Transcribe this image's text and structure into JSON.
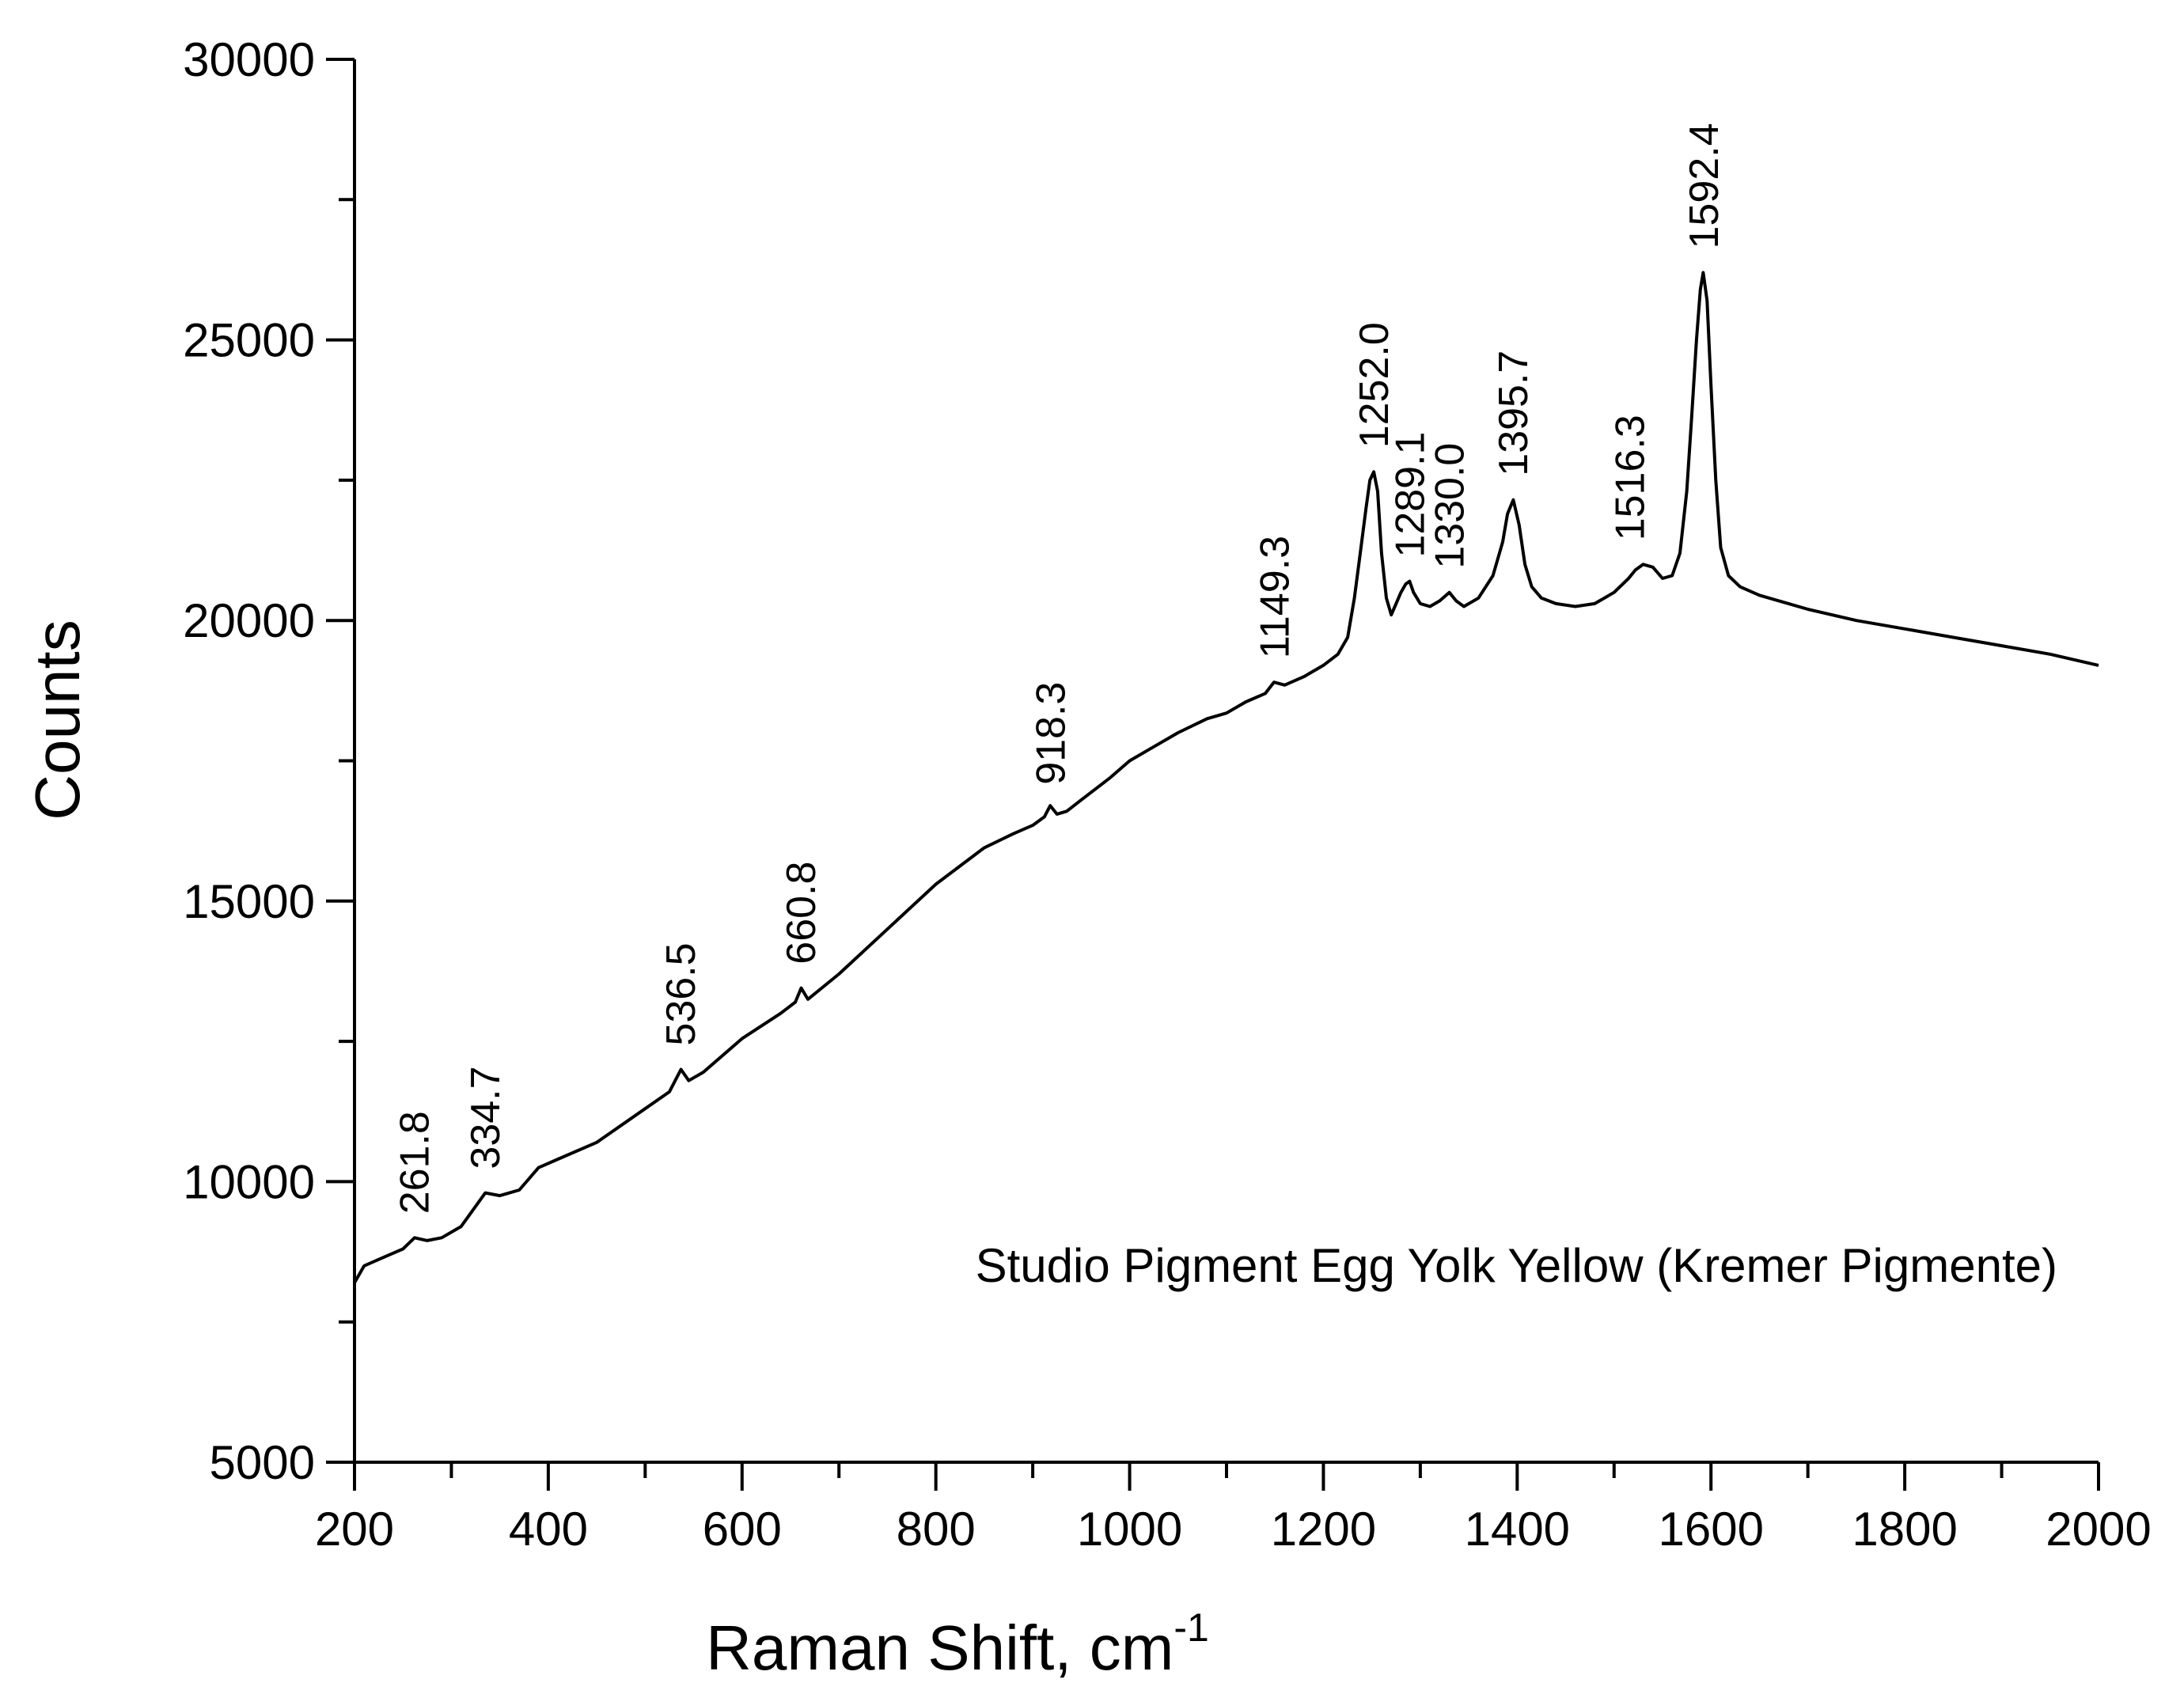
{
  "chart_data": {
    "type": "line",
    "title": "",
    "xlabel": "Raman Shift, cm",
    "xlabel_superscript": "-1",
    "ylabel": "Counts",
    "xlim": [
      200,
      2000
    ],
    "ylim": [
      5000,
      30000
    ],
    "x_ticks": [
      "200",
      "400",
      "600",
      "800",
      "1000",
      "1200",
      "1400",
      "1600",
      "1800",
      "2000"
    ],
    "y_ticks": [
      "5000",
      "10000",
      "15000",
      "20000",
      "25000",
      "30000"
    ],
    "grid": false,
    "legend": "none",
    "line_color": "#000000",
    "annotation": "Studio Pigment Egg Yolk Yellow (Kremer Pigmente)",
    "peak_labels": [
      {
        "label": "261.8",
        "x": 261.8,
        "y": 9000
      },
      {
        "label": "334.7",
        "x": 334.7,
        "y": 9800
      },
      {
        "label": "536.5",
        "x": 536.5,
        "y": 12000
      },
      {
        "label": "660.8",
        "x": 660.8,
        "y": 13450
      },
      {
        "label": "918.3",
        "x": 918.3,
        "y": 16650
      },
      {
        "label": "1149.3",
        "x": 1149.3,
        "y": 18900
      },
      {
        "label": "1252.0",
        "x": 1252.0,
        "y": 22650
      },
      {
        "label": "1289.1",
        "x": 1289.1,
        "y": 20700
      },
      {
        "label": "1330.0",
        "x": 1330.0,
        "y": 20500
      },
      {
        "label": "1395.7",
        "x": 1395.7,
        "y": 22150
      },
      {
        "label": "1516.3",
        "x": 1516.3,
        "y": 21000
      },
      {
        "label": "1592.4",
        "x": 1592.4,
        "y": 26200
      }
    ],
    "series": [
      {
        "x": [
          200,
          210,
          230,
          250,
          262,
          275,
          290,
          310,
          335,
          350,
          370,
          390,
          410,
          450,
          500,
          525,
          537,
          545,
          560,
          600,
          640,
          655,
          661,
          668,
          700,
          750,
          800,
          850,
          880,
          900,
          912,
          918,
          925,
          935,
          950,
          980,
          1000,
          1020,
          1050,
          1080,
          1100,
          1120,
          1140,
          1149,
          1160,
          1180,
          1200,
          1215,
          1225,
          1232,
          1238,
          1244,
          1248,
          1252,
          1256,
          1260,
          1265,
          1270,
          1275,
          1280,
          1285,
          1289,
          1293,
          1300,
          1310,
          1320,
          1330,
          1337,
          1345,
          1360,
          1375,
          1385,
          1390,
          1396,
          1402,
          1408,
          1415,
          1425,
          1440,
          1460,
          1480,
          1500,
          1515,
          1522,
          1530,
          1540,
          1550,
          1560,
          1568,
          1575,
          1580,
          1585,
          1589,
          1592,
          1596,
          1600,
          1605,
          1610,
          1618,
          1630,
          1650,
          1700,
          1750,
          1800,
          1850,
          1900,
          1950,
          2000
        ],
        "y": [
          8200,
          8500,
          8650,
          8800,
          9000,
          8950,
          9000,
          9200,
          9800,
          9750,
          9850,
          10250,
          10400,
          10700,
          11300,
          11600,
          12000,
          11800,
          11950,
          12550,
          13000,
          13200,
          13450,
          13250,
          13700,
          14500,
          15300,
          15950,
          16200,
          16350,
          16500,
          16700,
          16550,
          16600,
          16800,
          17200,
          17500,
          17700,
          18000,
          18250,
          18350,
          18550,
          18700,
          18900,
          18850,
          19000,
          19200,
          19400,
          19700,
          20400,
          21200,
          22000,
          22500,
          22650,
          22300,
          21200,
          20400,
          20100,
          20300,
          20500,
          20650,
          20700,
          20500,
          20300,
          20250,
          20350,
          20500,
          20350,
          20250,
          20400,
          20800,
          21400,
          21900,
          22150,
          21700,
          21000,
          20600,
          20400,
          20300,
          20250,
          20300,
          20500,
          20750,
          20900,
          21000,
          20950,
          20750,
          20800,
          21200,
          22300,
          23600,
          25000,
          25900,
          26200,
          25700,
          24200,
          22500,
          21300,
          20800,
          20600,
          20450,
          20200,
          20000,
          19850,
          19700,
          19550,
          19400,
          19200
        ]
      }
    ]
  }
}
